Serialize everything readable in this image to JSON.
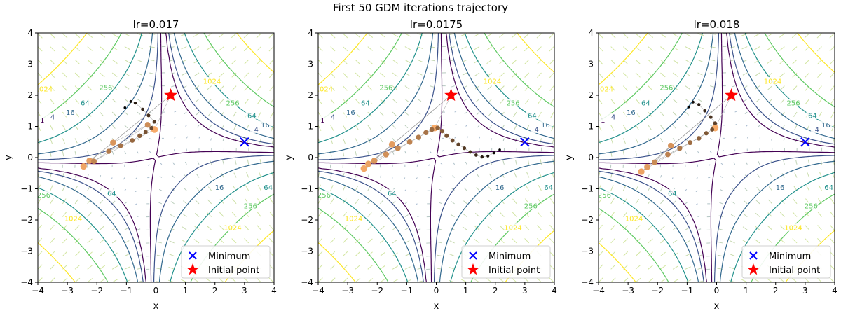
{
  "figure": {
    "suptitle": "First 50 GDM iterations trajectory"
  },
  "colors": {
    "minimum": "#0000ff",
    "initial": "#ff0000",
    "contour_levels": {
      "1": "#440154",
      "4": "#3b528b",
      "16": "#31688e",
      "64": "#21918c",
      "256": "#5ec962",
      "1024": "#fde725"
    },
    "trajectory_start": "#fdae6b",
    "trajectory_end": "#000000",
    "quiver": "#8fa6c8"
  },
  "chart_data": [
    {
      "type": "contour+scatter",
      "title": "lr=0.017",
      "xlabel": "x",
      "ylabel": "y",
      "xlim": [
        -4,
        4
      ],
      "ylim": [
        -4,
        4
      ],
      "xticks": [
        "−4",
        "−3",
        "−2",
        "−1",
        "0",
        "1",
        "2",
        "3",
        "4"
      ],
      "yticks": [
        "−4",
        "−3",
        "−2",
        "−1",
        "0",
        "1",
        "2",
        "3",
        "4"
      ],
      "contour_levels": [
        1,
        4,
        16,
        64,
        256,
        1024
      ],
      "minimum": {
        "x": 3,
        "y": 0.5
      },
      "initial_point": {
        "x": 0.5,
        "y": 2
      },
      "trajectory": [
        [
          0.5,
          2
        ],
        [
          -0.05,
          0.9
        ],
        [
          -2.45,
          -0.28
        ],
        [
          -2.25,
          -0.1
        ],
        [
          -1.45,
          0.48
        ],
        [
          -0.28,
          1.05
        ],
        [
          -2.1,
          -0.12
        ],
        [
          -1.6,
          0.2
        ],
        [
          -1.2,
          0.38
        ],
        [
          -0.8,
          0.55
        ],
        [
          -0.55,
          0.7
        ],
        [
          -0.35,
          0.82
        ],
        [
          -0.15,
          0.95
        ],
        [
          -0.05,
          1.15
        ],
        [
          -0.25,
          1.35
        ],
        [
          -0.45,
          1.55
        ],
        [
          -0.7,
          1.75
        ],
        [
          -0.85,
          1.8
        ],
        [
          -1.05,
          1.6
        ]
      ],
      "legend": {
        "position": "lower right",
        "entries": [
          "Minimum",
          "Initial point"
        ]
      }
    },
    {
      "type": "contour+scatter",
      "title": "lr=0.0175",
      "xlabel": "x",
      "ylabel": "y",
      "xlim": [
        -4,
        4
      ],
      "ylim": [
        -4,
        4
      ],
      "xticks": [
        "−4",
        "−3",
        "−2",
        "−1",
        "0",
        "1",
        "2",
        "3",
        "4"
      ],
      "yticks": [
        "−4",
        "−3",
        "−2",
        "−1",
        "0",
        "1",
        "2",
        "3",
        "4"
      ],
      "contour_levels": [
        1,
        4,
        16,
        64,
        256,
        1024
      ],
      "minimum": {
        "x": 3,
        "y": 0.5
      },
      "initial_point": {
        "x": 0.5,
        "y": 2
      },
      "trajectory": [
        [
          0.5,
          2
        ],
        [
          -0.05,
          0.95
        ],
        [
          -2.45,
          -0.35
        ],
        [
          -2.3,
          -0.2
        ],
        [
          -1.5,
          0.42
        ],
        [
          -2.1,
          -0.1
        ],
        [
          -1.7,
          0.1
        ],
        [
          -1.3,
          0.3
        ],
        [
          -0.9,
          0.5
        ],
        [
          -0.6,
          0.65
        ],
        [
          -0.35,
          0.8
        ],
        [
          -0.15,
          0.9
        ],
        [
          0.05,
          0.95
        ],
        [
          0.2,
          0.85
        ],
        [
          0.35,
          0.7
        ],
        [
          0.55,
          0.55
        ],
        [
          0.75,
          0.42
        ],
        [
          0.95,
          0.3
        ],
        [
          1.15,
          0.18
        ],
        [
          1.35,
          0.08
        ],
        [
          1.55,
          0.02
        ],
        [
          1.75,
          0.05
        ],
        [
          1.95,
          0.15
        ],
        [
          2.15,
          0.25
        ]
      ],
      "legend": {
        "position": "lower right",
        "entries": [
          "Minimum",
          "Initial point"
        ]
      }
    },
    {
      "type": "contour+scatter",
      "title": "lr=0.018",
      "xlabel": "x",
      "ylabel": "y",
      "xlim": [
        -4,
        4
      ],
      "ylim": [
        -4,
        4
      ],
      "xticks": [
        "−4",
        "−3",
        "−2",
        "−1",
        "0",
        "1",
        "2",
        "3",
        "4"
      ],
      "yticks": [
        "−4",
        "−3",
        "−2",
        "−1",
        "0",
        "1",
        "2",
        "3",
        "4"
      ],
      "contour_levels": [
        1,
        4,
        16,
        64,
        256,
        1024
      ],
      "minimum": {
        "x": 3,
        "y": 0.5
      },
      "initial_point": {
        "x": 0.5,
        "y": 2
      },
      "trajectory": [
        [
          0.5,
          2
        ],
        [
          -0.05,
          0.95
        ],
        [
          -2.55,
          -0.45
        ],
        [
          -2.35,
          -0.3
        ],
        [
          -1.55,
          0.38
        ],
        [
          -2.1,
          -0.15
        ],
        [
          -1.65,
          0.1
        ],
        [
          -1.25,
          0.3
        ],
        [
          -0.9,
          0.48
        ],
        [
          -0.6,
          0.62
        ],
        [
          -0.35,
          0.78
        ],
        [
          -0.15,
          0.9
        ],
        [
          -0.05,
          1.1
        ],
        [
          -0.2,
          1.3
        ],
        [
          -0.4,
          1.5
        ],
        [
          -0.6,
          1.7
        ],
        [
          -0.8,
          1.78
        ],
        [
          -0.95,
          1.62
        ]
      ],
      "legend": {
        "position": "lower right",
        "entries": [
          "Minimum",
          "Initial point"
        ]
      }
    }
  ]
}
